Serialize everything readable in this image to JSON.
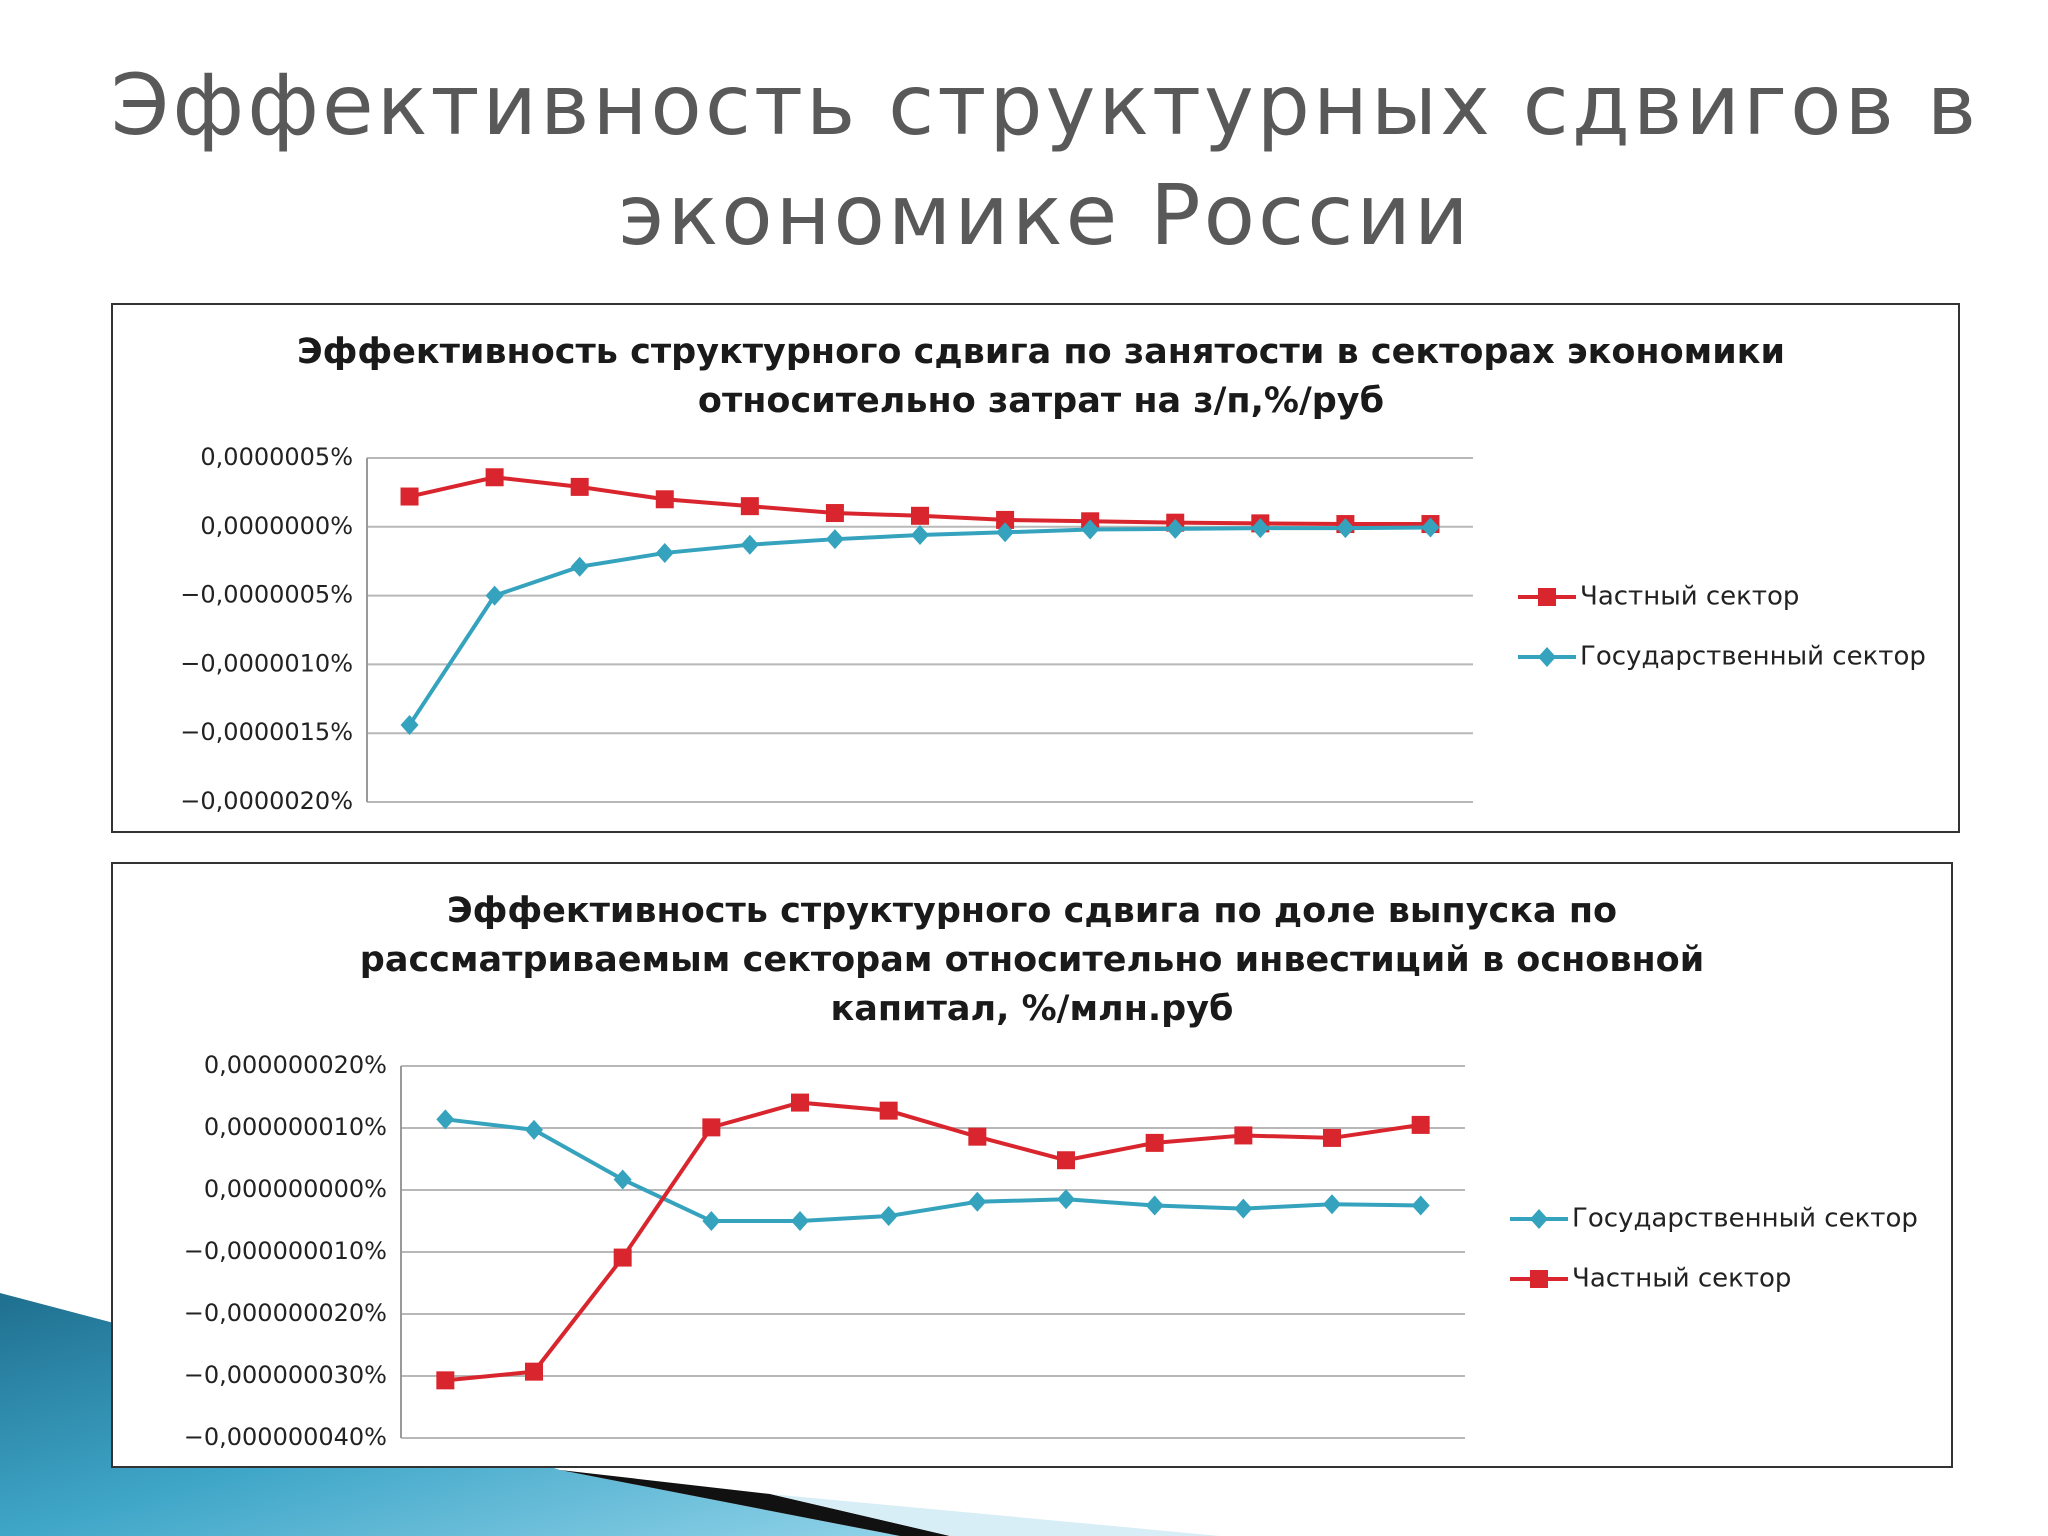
{
  "title": [
    "Эффективность структурных сдвигов в",
    "экономике России"
  ],
  "chart_data": [
    {
      "type": "line",
      "title": [
        "Эффективность структурного сдвига по занятости в секторах экономики",
        "относительно затрат на з/п,%/руб"
      ],
      "categories": [
        null,
        null,
        null,
        null,
        null,
        null,
        null,
        null,
        null,
        null,
        null,
        null,
        null
      ],
      "series": [
        {
          "name": "Частный сектор",
          "color": "#d9262e",
          "marker": "square",
          "values": [
            2.2e-07,
            3.6e-07,
            2.9e-07,
            2e-07,
            1.5e-07,
            1e-07,
            8e-08,
            5e-08,
            4e-08,
            3e-08,
            2.5e-08,
            2e-08,
            2e-08
          ]
        },
        {
          "name": "Государственный сектор",
          "color": "#35a3bd",
          "marker": "diamond",
          "values": [
            -1.44e-06,
            -5e-07,
            -2.9e-07,
            -1.9e-07,
            -1.3e-07,
            -9e-08,
            -6e-08,
            -4e-08,
            -2e-08,
            -1.5e-08,
            -1e-08,
            -1e-08,
            -5e-09
          ]
        }
      ],
      "ylim": [
        -2e-06,
        5e-07
      ],
      "yticks": [
        {
          "value": 5e-07,
          "label": "0,0000005%"
        },
        {
          "value": 0,
          "label": "0,0000000%"
        },
        {
          "value": -5e-07,
          "label": "−0,0000005%"
        },
        {
          "value": -1e-06,
          "label": "−0,0000010%"
        },
        {
          "value": -1.5e-06,
          "label": "−0,0000015%"
        },
        {
          "value": -2e-06,
          "label": "−0,0000020%"
        }
      ],
      "grid": true,
      "legend": "right"
    },
    {
      "type": "line",
      "title": [
        "Эффективность структурного сдвига по доле выпуска по",
        "рассматриваемым секторам относительно инвестиций в основной",
        "капитал, %/млн.руб"
      ],
      "categories": [
        null,
        null,
        null,
        null,
        null,
        null,
        null,
        null,
        null,
        null,
        null,
        null
      ],
      "series": [
        {
          "name": "Государственный сектор",
          "color": "#35a3bd",
          "marker": "diamond",
          "values": [
            1.14e-08,
            9.7e-09,
            1.7e-09,
            -5e-09,
            -5e-09,
            -4.2e-09,
            -1.9e-09,
            -1.5e-09,
            -2.5e-09,
            -3e-09,
            -2.3e-09,
            -2.5e-09
          ]
        },
        {
          "name": "Частный сектор",
          "color": "#d9262e",
          "marker": "square",
          "values": [
            -3.07e-08,
            -2.93e-08,
            -1.09e-08,
            1.01e-08,
            1.41e-08,
            1.28e-08,
            8.6e-09,
            4.8e-09,
            7.6e-09,
            8.8e-09,
            8.4e-09,
            1.05e-08
          ]
        }
      ],
      "ylim": [
        -4e-08,
        2e-08
      ],
      "yticks": [
        {
          "value": 2e-08,
          "label": "0,000000020%"
        },
        {
          "value": 1e-08,
          "label": "0,000000010%"
        },
        {
          "value": 0,
          "label": "0,000000000%"
        },
        {
          "value": -1e-08,
          "label": "−0,000000010%"
        },
        {
          "value": -2e-08,
          "label": "−0,000000020%"
        },
        {
          "value": -3e-08,
          "label": "−0,000000030%"
        },
        {
          "value": -4e-08,
          "label": "−0,000000040%"
        }
      ],
      "grid": true,
      "legend": "right"
    }
  ]
}
